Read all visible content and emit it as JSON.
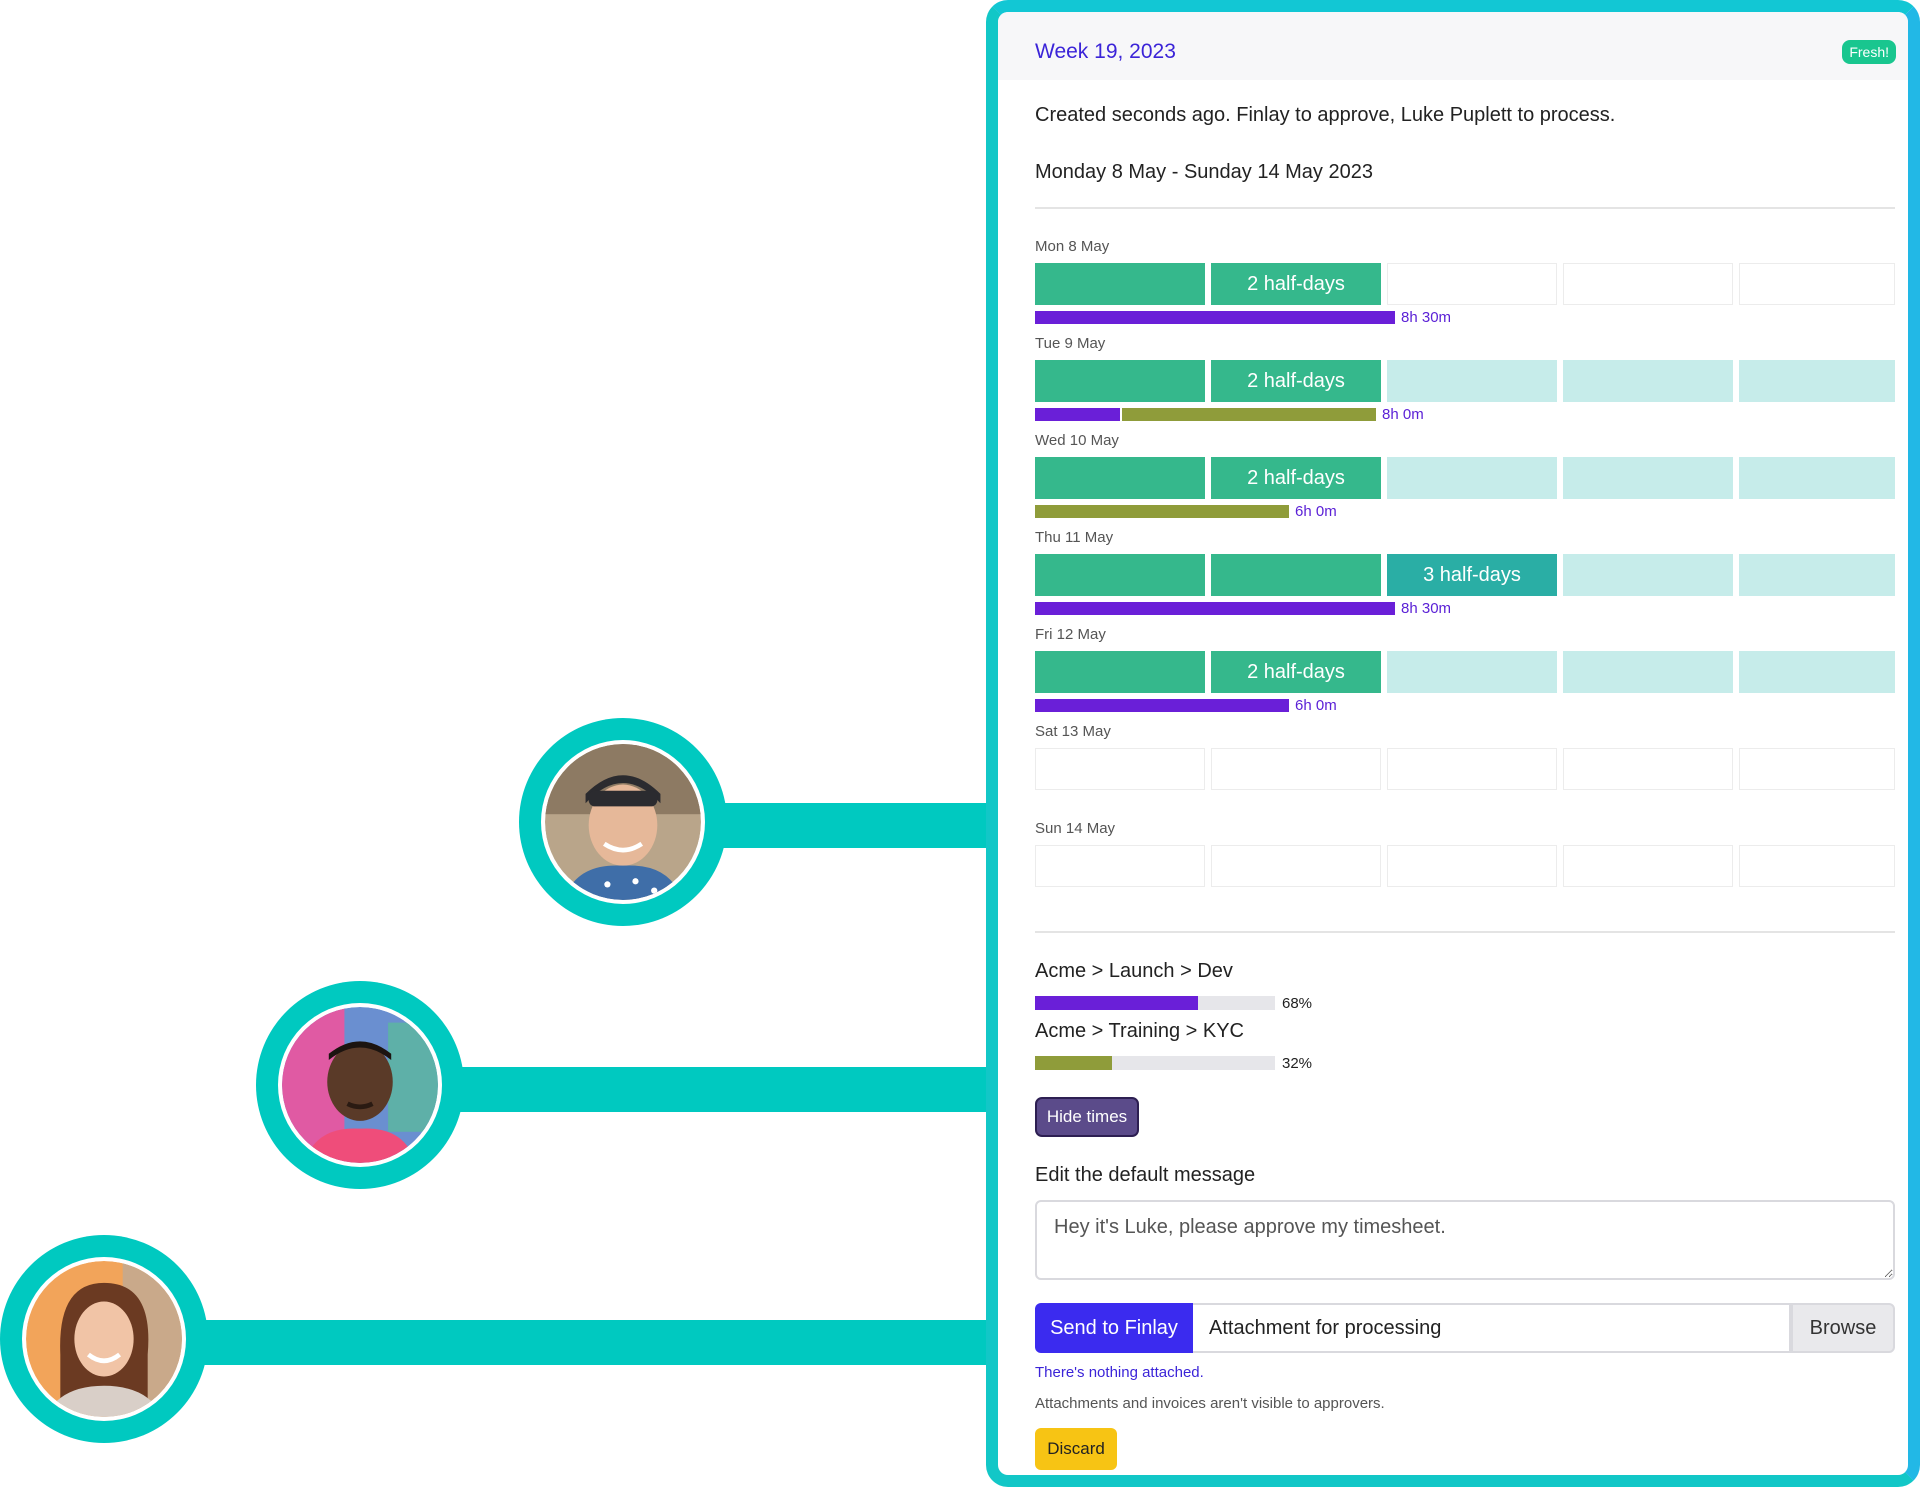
{
  "card": {
    "week_title": "Week 19, 2023",
    "badge": "Fresh!",
    "meta": "Created seconds ago. Finlay to approve, Luke Puplett to process.",
    "date_range": "Monday 8 May - Sunday 14 May 2023"
  },
  "days": [
    {
      "label": "Mon 8 May",
      "slots": [
        {
          "state": "green",
          "text": ""
        },
        {
          "state": "green",
          "text": "2 half-days"
        },
        {
          "state": "empty",
          "text": ""
        },
        {
          "state": "empty",
          "text": ""
        },
        {
          "state": "empty",
          "text": ""
        }
      ],
      "time_label": "8h 30m",
      "bars": [
        {
          "color": "#6a1fd8",
          "fraction": 0.425
        }
      ]
    },
    {
      "label": "Tue 9 May",
      "slots": [
        {
          "state": "green",
          "text": ""
        },
        {
          "state": "green",
          "text": "2 half-days"
        },
        {
          "state": "light",
          "text": ""
        },
        {
          "state": "light",
          "text": ""
        },
        {
          "state": "light",
          "text": ""
        }
      ],
      "time_label": "8h 0m",
      "bars": [
        {
          "color": "#6a1fd8",
          "fraction": 0.1
        },
        {
          "color": "#8f9c3a",
          "fraction": 0.3
        }
      ]
    },
    {
      "label": "Wed 10 May",
      "slots": [
        {
          "state": "green",
          "text": ""
        },
        {
          "state": "green",
          "text": "2 half-days"
        },
        {
          "state": "light",
          "text": ""
        },
        {
          "state": "light",
          "text": ""
        },
        {
          "state": "light",
          "text": ""
        }
      ],
      "time_label": "6h 0m",
      "bars": [
        {
          "color": "#8f9c3a",
          "fraction": 0.3
        }
      ]
    },
    {
      "label": "Thu 11 May",
      "slots": [
        {
          "state": "green",
          "text": ""
        },
        {
          "state": "green",
          "text": ""
        },
        {
          "state": "teal",
          "text": "3 half-days"
        },
        {
          "state": "light",
          "text": ""
        },
        {
          "state": "light",
          "text": ""
        }
      ],
      "time_label": "8h 30m",
      "bars": [
        {
          "color": "#6a1fd8",
          "fraction": 0.425
        }
      ]
    },
    {
      "label": "Fri 12 May",
      "slots": [
        {
          "state": "green",
          "text": ""
        },
        {
          "state": "green",
          "text": "2 half-days"
        },
        {
          "state": "light",
          "text": ""
        },
        {
          "state": "light",
          "text": ""
        },
        {
          "state": "light",
          "text": ""
        }
      ],
      "time_label": "6h 0m",
      "bars": [
        {
          "color": "#6a1fd8",
          "fraction": 0.3
        }
      ]
    },
    {
      "label": "Sat 13 May",
      "slots": [
        {
          "state": "empty",
          "text": ""
        },
        {
          "state": "empty",
          "text": ""
        },
        {
          "state": "empty",
          "text": ""
        },
        {
          "state": "empty",
          "text": ""
        },
        {
          "state": "empty",
          "text": ""
        }
      ],
      "time_label": "",
      "bars": []
    },
    {
      "label": "Sun 14 May",
      "slots": [
        {
          "state": "empty",
          "text": ""
        },
        {
          "state": "empty",
          "text": ""
        },
        {
          "state": "empty",
          "text": ""
        },
        {
          "state": "empty",
          "text": ""
        },
        {
          "state": "empty",
          "text": ""
        }
      ],
      "time_label": "",
      "bars": []
    }
  ],
  "projects": [
    {
      "name": "Acme > Launch > Dev",
      "percent": 68,
      "percent_label": "68%",
      "color": "#6a1fd8"
    },
    {
      "name": "Acme > Training > KYC",
      "percent": 32,
      "percent_label": "32%",
      "color": "#8f9c3a"
    }
  ],
  "actions": {
    "hide_times": "Hide times",
    "edit_label": "Edit the default message",
    "message_value": "Hey it's Luke, please approve my timesheet.",
    "send_label": "Send to Finlay",
    "attachment_label": "Attachment for processing",
    "browse_label": "Browse",
    "nothing_attached": "There's nothing attached.",
    "attach_note": "Attachments and invoices aren't visible to approvers.",
    "discard_label": "Discard"
  },
  "avatars": [
    {
      "name": "avatar-approver-cap"
    },
    {
      "name": "avatar-approver-man"
    },
    {
      "name": "avatar-approver-woman"
    }
  ]
}
